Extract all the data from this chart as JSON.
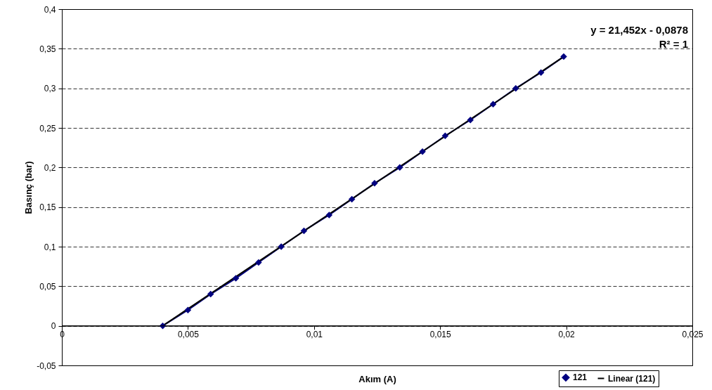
{
  "chart_data": {
    "type": "scatter",
    "xlabel": "Akım (A)",
    "ylabel": "Basınç (bar)",
    "xlim": [
      0,
      0.025
    ],
    "ylim": [
      -0.05,
      0.4
    ],
    "xticks": [
      {
        "value": 0,
        "label": "0"
      },
      {
        "value": 0.005,
        "label": "0,005"
      },
      {
        "value": 0.01,
        "label": "0,01"
      },
      {
        "value": 0.015,
        "label": "0,015"
      },
      {
        "value": 0.02,
        "label": "0,02"
      },
      {
        "value": 0.025,
        "label": "0,025"
      }
    ],
    "yticks": [
      {
        "value": -0.05,
        "label": "-0,05"
      },
      {
        "value": 0,
        "label": "0"
      },
      {
        "value": 0.05,
        "label": "0,05"
      },
      {
        "value": 0.1,
        "label": "0,1"
      },
      {
        "value": 0.15,
        "label": "0,15"
      },
      {
        "value": 0.2,
        "label": "0,2"
      },
      {
        "value": 0.25,
        "label": "0,25"
      },
      {
        "value": 0.3,
        "label": "0,3"
      },
      {
        "value": 0.35,
        "label": "0,35"
      },
      {
        "value": 0.4,
        "label": "0,4"
      }
    ],
    "grid": "y",
    "legend": "bottom right",
    "marker": "diamond",
    "series": [
      {
        "name": "121",
        "color": "#000080",
        "x": [
          0.004,
          0.005,
          0.0059,
          0.0069,
          0.0078,
          0.0087,
          0.0096,
          0.0106,
          0.0115,
          0.0124,
          0.0134,
          0.0143,
          0.0152,
          0.0162,
          0.0171,
          0.018,
          0.019,
          0.0199
        ],
        "values": [
          0,
          0.02,
          0.04,
          0.06,
          0.08,
          0.1,
          0.12,
          0.14,
          0.16,
          0.18,
          0.2,
          0.22,
          0.24,
          0.26,
          0.28,
          0.3,
          0.32,
          0.34
        ]
      },
      {
        "name": "Linear (121)",
        "type": "line",
        "marker": "none",
        "color": "#000000",
        "x": [
          0.004,
          0.0199
        ],
        "values": [
          0,
          0.34
        ]
      }
    ],
    "annotations": [
      "y = 21,452x - 0,0878",
      "R² = 1"
    ]
  }
}
